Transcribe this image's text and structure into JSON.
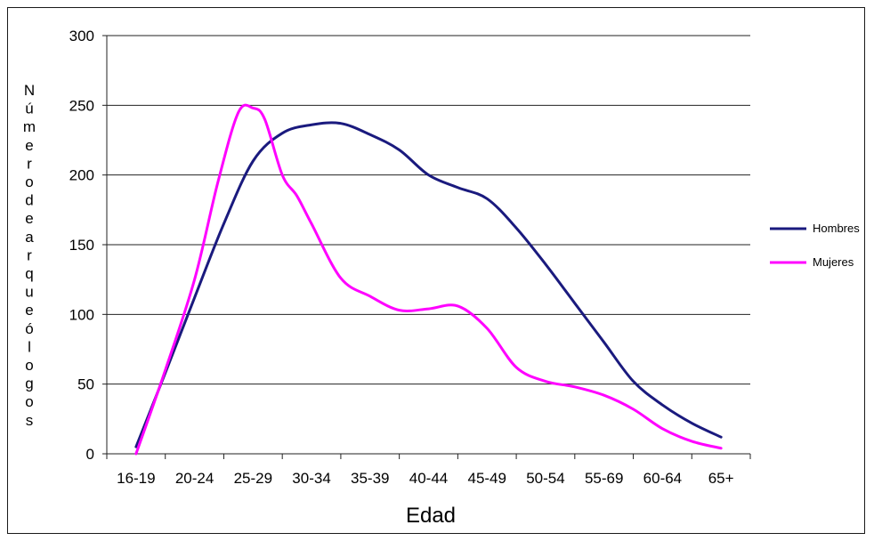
{
  "chart_data": {
    "type": "line",
    "xlabel": "Edad",
    "ylabel": "Número de arqueólogos",
    "categories": [
      "16-19",
      "20-24",
      "25-29",
      "30-34",
      "35-39",
      "40-44",
      "45-49",
      "50-54",
      "55-69",
      "60-64",
      "65+"
    ],
    "yticks": [
      "0",
      "50",
      "100",
      "150",
      "200",
      "250",
      "300"
    ],
    "ylim": [
      0,
      300
    ],
    "grid": true,
    "legend_position": "right",
    "series": [
      {
        "name": "Hombres",
        "color": "#1a1a7e",
        "points": [
          [
            0,
            5
          ],
          [
            0.5,
            58
          ],
          [
            1,
            112
          ],
          [
            1.5,
            165
          ],
          [
            2,
            210
          ],
          [
            2.5,
            230
          ],
          [
            3,
            236
          ],
          [
            3.5,
            237
          ],
          [
            4,
            229
          ],
          [
            4.5,
            218
          ],
          [
            5,
            200
          ],
          [
            5.5,
            191
          ],
          [
            6,
            183
          ],
          [
            6.5,
            162
          ],
          [
            7,
            136
          ],
          [
            7.5,
            108
          ],
          [
            8,
            80
          ],
          [
            8.5,
            52
          ],
          [
            9,
            35
          ],
          [
            9.5,
            22
          ],
          [
            10,
            12
          ]
        ]
      },
      {
        "name": "Mujeres",
        "color": "#ff00ff",
        "points": [
          [
            0,
            0
          ],
          [
            0.5,
            60
          ],
          [
            1,
            125
          ],
          [
            1.4,
            195
          ],
          [
            1.75,
            245
          ],
          [
            2,
            248
          ],
          [
            2.2,
            240
          ],
          [
            2.5,
            200
          ],
          [
            2.75,
            185
          ],
          [
            3,
            165
          ],
          [
            3.5,
            126
          ],
          [
            4,
            113
          ],
          [
            4.5,
            103
          ],
          [
            5,
            104
          ],
          [
            5.5,
            106
          ],
          [
            6,
            90
          ],
          [
            6.5,
            62
          ],
          [
            7,
            52
          ],
          [
            7.5,
            48
          ],
          [
            8,
            42
          ],
          [
            8.5,
            32
          ],
          [
            9,
            18
          ],
          [
            9.5,
            9
          ],
          [
            10,
            4
          ]
        ]
      }
    ]
  }
}
